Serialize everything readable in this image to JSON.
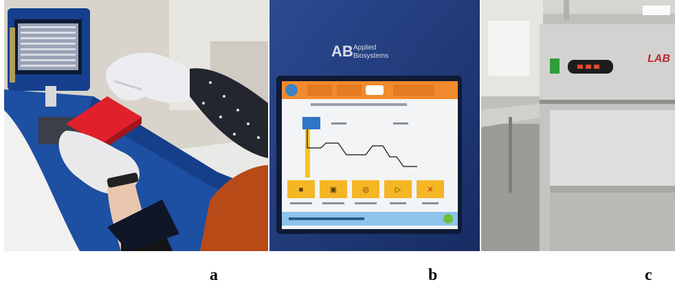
{
  "figure": {
    "panels": [
      {
        "id": "a",
        "label": "a"
      },
      {
        "id": "b",
        "label": "b"
      },
      {
        "id": "c",
        "label": "c"
      }
    ]
  },
  "panel_b": {
    "brand_short": "AB",
    "brand_line1": "Applied",
    "brand_line2": "Biosystems"
  },
  "panel_c": {
    "brand": "LAB"
  }
}
